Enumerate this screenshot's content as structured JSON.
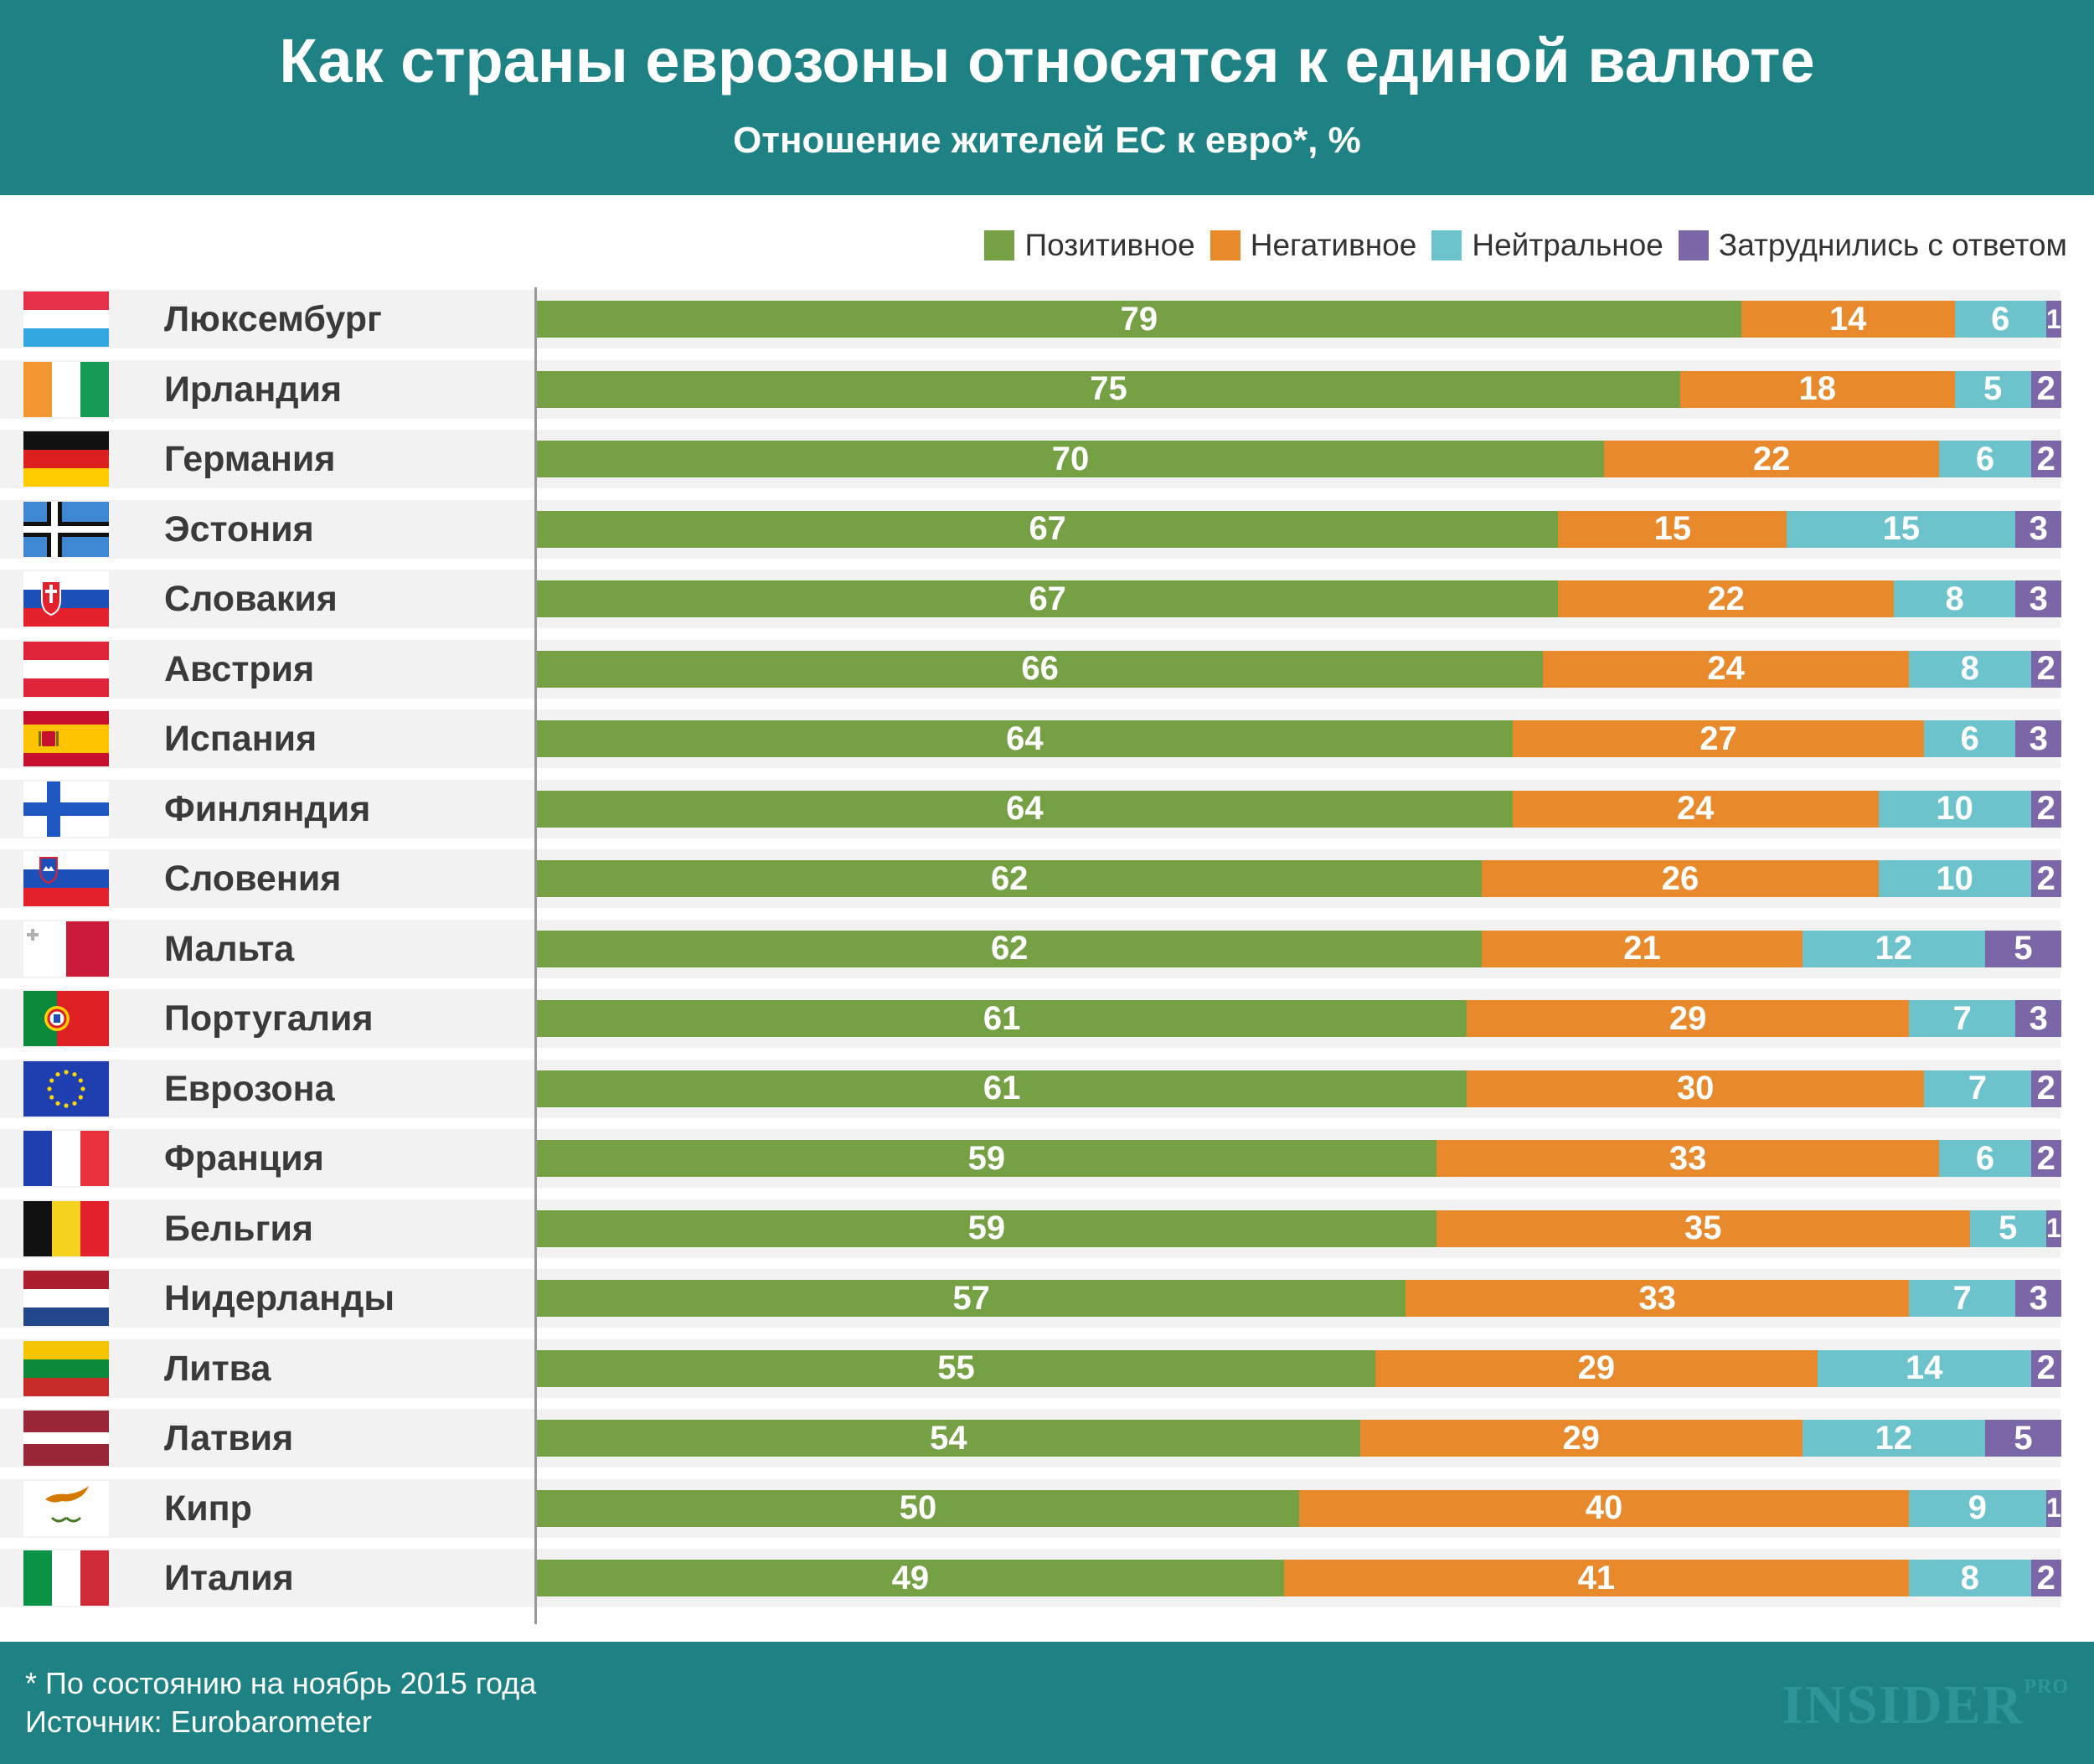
{
  "header": {
    "title": "Как страны еврозоны относятся к единой валюте",
    "subtitle": "Отношение жителей ЕС к евро*, %"
  },
  "footer": {
    "note": "* По состоянию на ноябрь 2015 года",
    "source": "Источник: Eurobarometer",
    "logo_main": "INSIDER",
    "logo_sup": "PRO"
  },
  "colors": {
    "positive": "#76a044",
    "negative": "#e8892b",
    "neutral": "#6cc3cc",
    "unsure": "#7b67a8",
    "header_bg": "#1e8285"
  },
  "chart_data": {
    "type": "bar",
    "orientation": "horizontal",
    "stacked": true,
    "title": "Как страны еврозоны относятся к единой валюте",
    "subtitle": "Отношение жителей ЕС к евро*, %",
    "legend_position": "top-right",
    "xlim": [
      0,
      100
    ],
    "categories": [
      "Люксембург",
      "Ирландия",
      "Германия",
      "Эстония",
      "Словакия",
      "Австрия",
      "Испания",
      "Финляндия",
      "Словения",
      "Мальта",
      "Португалия",
      "Еврозона",
      "Франция",
      "Бельгия",
      "Нидерланды",
      "Литва",
      "Латвия",
      "Кипр",
      "Италия"
    ],
    "flags": [
      "lu",
      "ie",
      "de",
      "ee",
      "sk",
      "at",
      "es",
      "fi",
      "si",
      "mt",
      "pt",
      "eu",
      "fr",
      "be",
      "nl",
      "lt",
      "lv",
      "cy",
      "it"
    ],
    "series": [
      {
        "name": "Позитивное",
        "key": "positive",
        "values": [
          79,
          75,
          70,
          67,
          67,
          66,
          64,
          64,
          62,
          62,
          61,
          61,
          59,
          59,
          57,
          55,
          54,
          50,
          49
        ]
      },
      {
        "name": "Негативное",
        "key": "negative",
        "values": [
          14,
          18,
          22,
          15,
          22,
          24,
          27,
          24,
          26,
          21,
          29,
          30,
          33,
          35,
          33,
          29,
          29,
          40,
          41
        ]
      },
      {
        "name": "Нейтральное",
        "key": "neutral",
        "values": [
          6,
          5,
          6,
          15,
          8,
          8,
          6,
          10,
          10,
          12,
          7,
          7,
          6,
          5,
          7,
          14,
          12,
          9,
          8
        ]
      },
      {
        "name": "Затруднились с ответом",
        "key": "unsure",
        "values": [
          1,
          2,
          2,
          3,
          3,
          2,
          3,
          2,
          2,
          5,
          3,
          2,
          2,
          1,
          3,
          2,
          5,
          1,
          2
        ]
      }
    ]
  }
}
